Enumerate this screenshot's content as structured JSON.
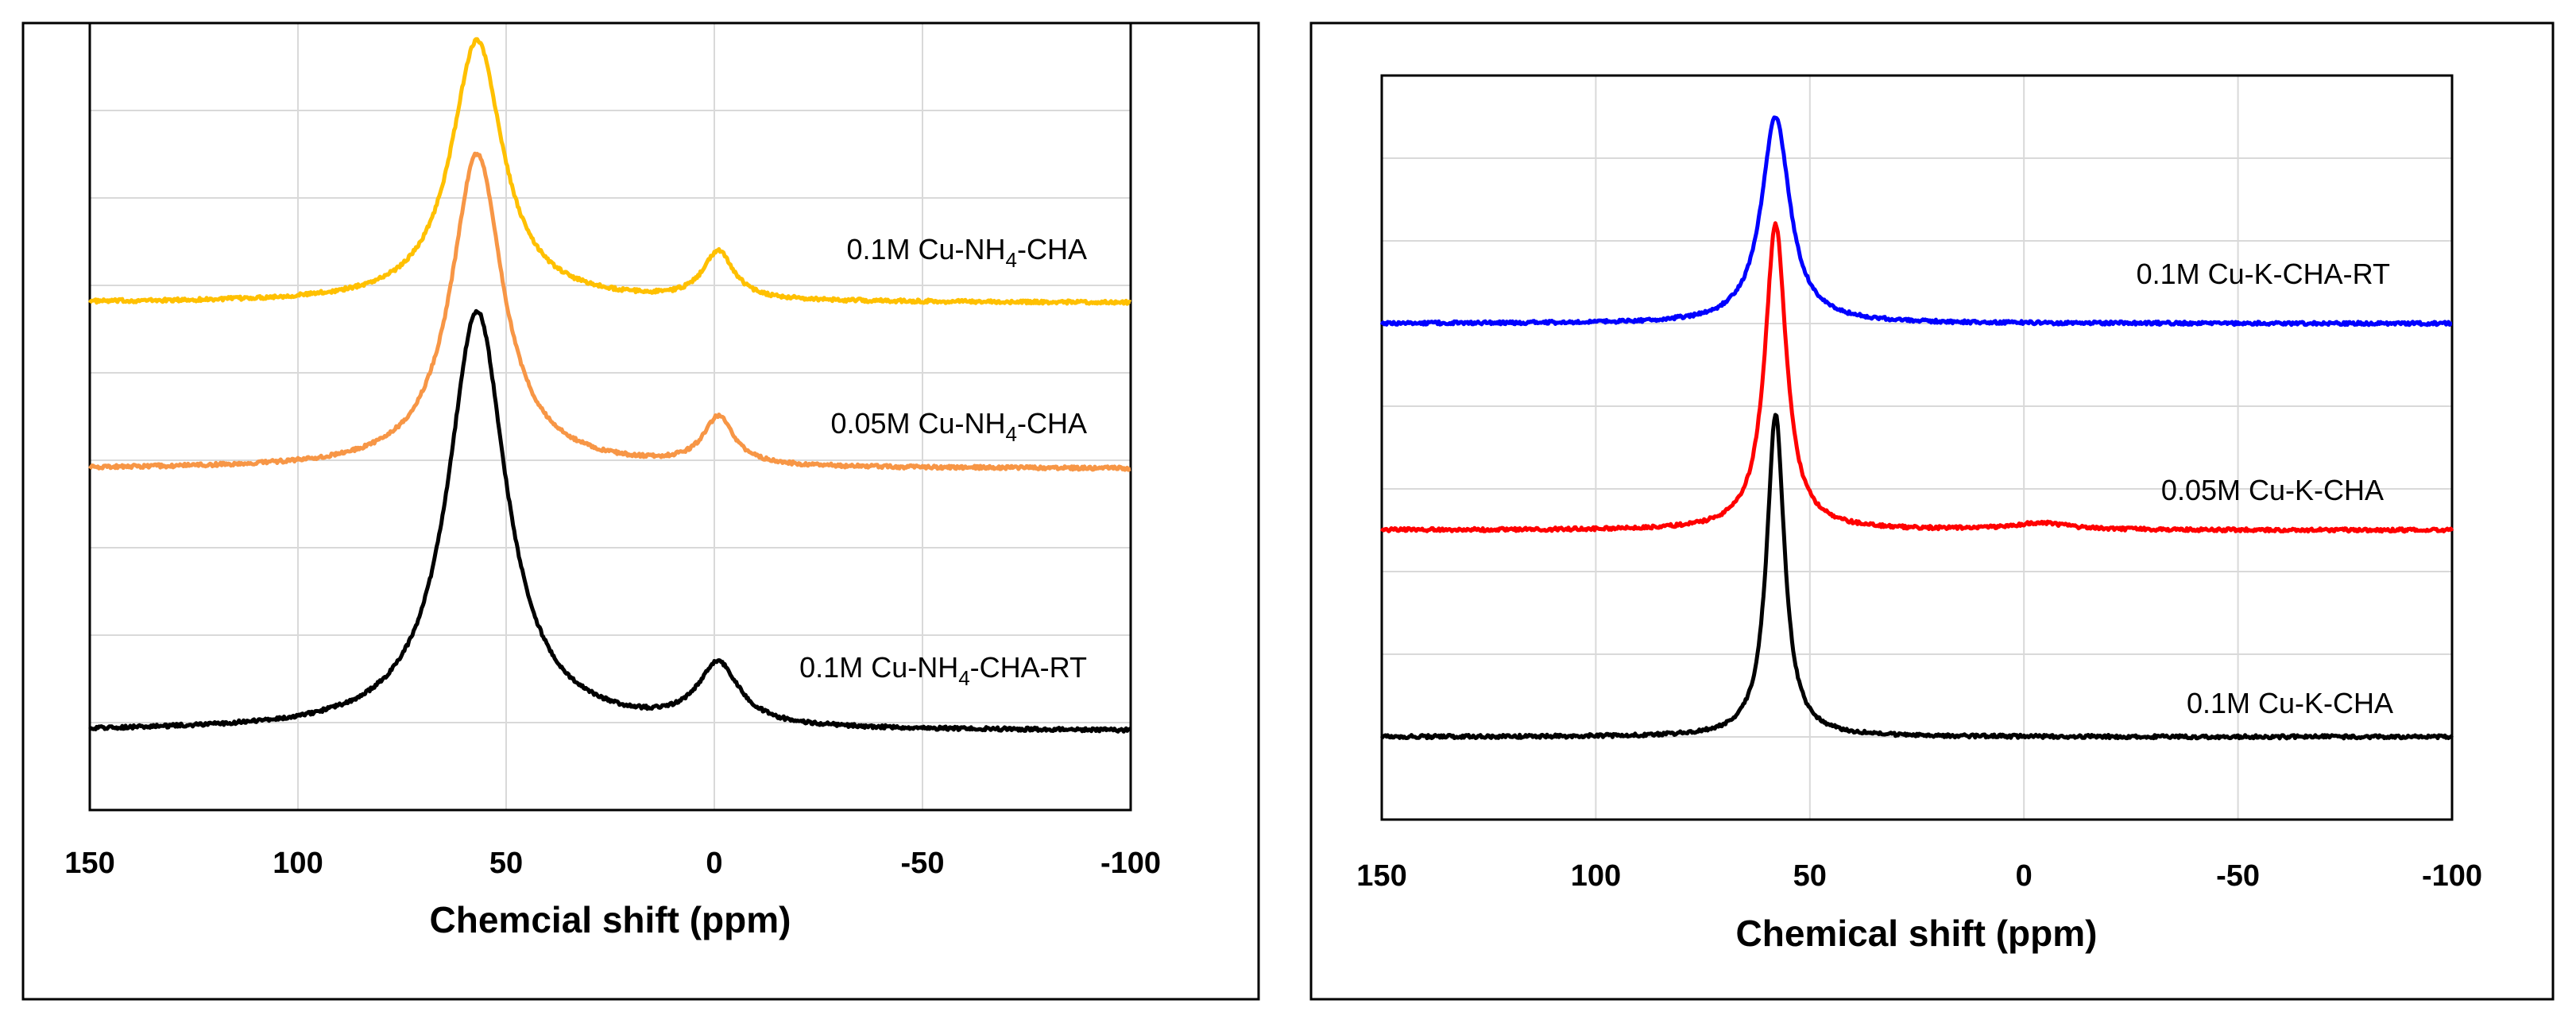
{
  "chart_data": [
    {
      "type": "line",
      "title": "",
      "xlabel": "Chemcial shift (ppm)",
      "ylabel": "",
      "xlim": [
        150,
        -100
      ],
      "ylim": [
        0,
        9
      ],
      "x_ticks": [
        "150",
        "100",
        "50",
        "0",
        "-50",
        "-100"
      ],
      "x_tick_values": [
        150,
        100,
        50,
        0,
        -50,
        -100
      ],
      "grid": true,
      "series": [
        {
          "name": "0.1M Cu-NH4-CHA",
          "label_parts": [
            "0.1M Cu-NH",
            "4",
            "-CHA"
          ],
          "color": "#FFC000",
          "baseline": 5.8,
          "peaks": [
            {
              "center": 57,
              "height": 3.0,
              "width": 7.5
            },
            {
              "center": -1,
              "height": 0.55,
              "width": 4.5
            }
          ]
        },
        {
          "name": "0.05M Cu-NH4-CHA",
          "label_parts": [
            "0.05M Cu-NH",
            "4",
            "-CHA"
          ],
          "color": "#F79646",
          "baseline": 3.9,
          "peaks": [
            {
              "center": 57,
              "height": 3.6,
              "width": 7.5
            },
            {
              "center": -1,
              "height": 0.55,
              "width": 4.5
            }
          ]
        },
        {
          "name": "0.1M Cu-NH4-CHA-RT",
          "label_parts": [
            "0.1M Cu-NH",
            "4",
            "-CHA-RT"
          ],
          "color": "#000000",
          "baseline": 0.9,
          "peaks": [
            {
              "center": 57,
              "height": 4.8,
              "width": 8.5
            },
            {
              "center": -1,
              "height": 0.7,
              "width": 6
            }
          ]
        }
      ]
    },
    {
      "type": "line",
      "title": "",
      "xlabel": "Chemical shift (ppm)",
      "ylabel": "",
      "xlim": [
        150,
        -100
      ],
      "ylim": [
        0,
        9
      ],
      "x_ticks": [
        "150",
        "100",
        "50",
        "0",
        "-50",
        "-100"
      ],
      "x_tick_values": [
        150,
        100,
        50,
        0,
        -50,
        -100
      ],
      "grid": true,
      "series": [
        {
          "name": "0.1M Cu-K-CHA-RT",
          "label_parts": [
            "0.1M Cu-K-CHA-RT",
            "",
            ""
          ],
          "color": "#0000FF",
          "baseline": 6.0,
          "peaks": [
            {
              "center": 58,
              "height": 2.5,
              "width": 4
            }
          ]
        },
        {
          "name": "0.05M Cu-K-CHA",
          "label_parts": [
            "0.05M Cu-K-CHA",
            "",
            ""
          ],
          "color": "#FF0000",
          "baseline": 3.5,
          "peaks": [
            {
              "center": 58,
              "height": 3.7,
              "width": 3
            },
            {
              "center": -4,
              "height": 0.08,
              "width": 8
            }
          ]
        },
        {
          "name": "0.1M Cu-K-CHA",
          "label_parts": [
            "0.1M Cu-K-CHA",
            "",
            ""
          ],
          "color": "#000000",
          "baseline": 1.0,
          "peaks": [
            {
              "center": 58,
              "height": 3.9,
              "width": 2.5
            }
          ]
        }
      ]
    }
  ]
}
